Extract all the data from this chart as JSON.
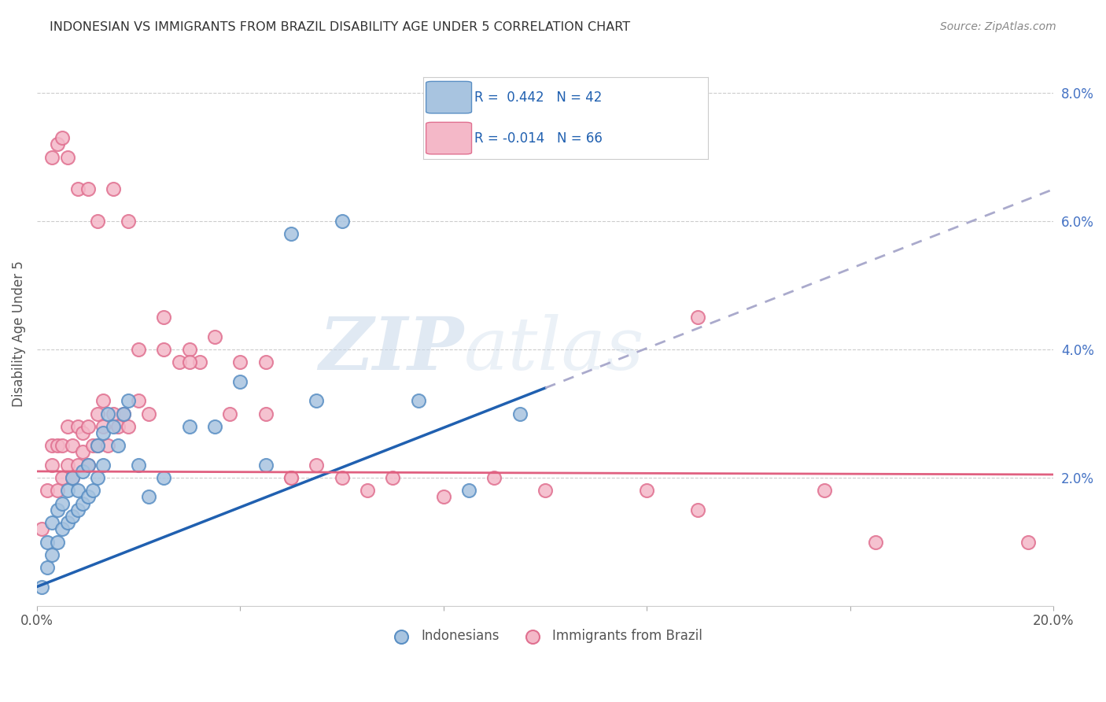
{
  "title": "INDONESIAN VS IMMIGRANTS FROM BRAZIL DISABILITY AGE UNDER 5 CORRELATION CHART",
  "source": "Source: ZipAtlas.com",
  "ylabel": "Disability Age Under 5",
  "xlim": [
    0,
    0.2
  ],
  "ylim": [
    0,
    0.085
  ],
  "color_indonesian_fill": "#a8c4e0",
  "color_indonesian_edge": "#5a8fc4",
  "color_brazil_fill": "#f4b8c8",
  "color_brazil_edge": "#e07090",
  "color_line_indonesian": "#2060b0",
  "color_line_brazil": "#e06080",
  "color_line_ext": "#aaaacc",
  "legend_R1": "0.442",
  "legend_N1": "42",
  "legend_R2": "-0.014",
  "legend_N2": "66",
  "watermark_zip": "ZIP",
  "watermark_atlas": "atlas",
  "ind_x": [
    0.001,
    0.002,
    0.002,
    0.003,
    0.003,
    0.004,
    0.004,
    0.005,
    0.005,
    0.006,
    0.006,
    0.007,
    0.007,
    0.008,
    0.008,
    0.009,
    0.009,
    0.01,
    0.01,
    0.011,
    0.012,
    0.012,
    0.013,
    0.013,
    0.014,
    0.015,
    0.016,
    0.017,
    0.018,
    0.02,
    0.022,
    0.025,
    0.03,
    0.035,
    0.04,
    0.045,
    0.05,
    0.055,
    0.06,
    0.075,
    0.085,
    0.095
  ],
  "ind_y": [
    0.003,
    0.006,
    0.01,
    0.008,
    0.013,
    0.01,
    0.015,
    0.012,
    0.016,
    0.013,
    0.018,
    0.014,
    0.02,
    0.015,
    0.018,
    0.016,
    0.021,
    0.017,
    0.022,
    0.018,
    0.025,
    0.02,
    0.027,
    0.022,
    0.03,
    0.028,
    0.025,
    0.03,
    0.032,
    0.022,
    0.017,
    0.02,
    0.028,
    0.028,
    0.035,
    0.022,
    0.058,
    0.032,
    0.06,
    0.032,
    0.018,
    0.03
  ],
  "bra_x": [
    0.001,
    0.002,
    0.003,
    0.003,
    0.004,
    0.004,
    0.005,
    0.005,
    0.006,
    0.006,
    0.007,
    0.007,
    0.008,
    0.008,
    0.009,
    0.009,
    0.01,
    0.01,
    0.011,
    0.012,
    0.012,
    0.013,
    0.013,
    0.014,
    0.015,
    0.016,
    0.017,
    0.018,
    0.02,
    0.022,
    0.025,
    0.028,
    0.03,
    0.032,
    0.035,
    0.038,
    0.04,
    0.045,
    0.05,
    0.055,
    0.06,
    0.065,
    0.07,
    0.08,
    0.09,
    0.1,
    0.12,
    0.13,
    0.155,
    0.165,
    0.003,
    0.004,
    0.005,
    0.006,
    0.008,
    0.01,
    0.012,
    0.015,
    0.018,
    0.02,
    0.025,
    0.03,
    0.045,
    0.05,
    0.13,
    0.195
  ],
  "bra_y": [
    0.012,
    0.018,
    0.022,
    0.025,
    0.018,
    0.025,
    0.02,
    0.025,
    0.022,
    0.028,
    0.02,
    0.025,
    0.022,
    0.028,
    0.024,
    0.027,
    0.022,
    0.028,
    0.025,
    0.03,
    0.025,
    0.028,
    0.032,
    0.025,
    0.03,
    0.028,
    0.03,
    0.028,
    0.032,
    0.03,
    0.04,
    0.038,
    0.04,
    0.038,
    0.042,
    0.03,
    0.038,
    0.03,
    0.02,
    0.022,
    0.02,
    0.018,
    0.02,
    0.017,
    0.02,
    0.018,
    0.018,
    0.015,
    0.018,
    0.01,
    0.07,
    0.072,
    0.073,
    0.07,
    0.065,
    0.065,
    0.06,
    0.065,
    0.06,
    0.04,
    0.045,
    0.038,
    0.038,
    0.02,
    0.045,
    0.01
  ],
  "ind_line_x0": 0.0,
  "ind_line_y0": 0.003,
  "ind_line_x1": 0.1,
  "ind_line_y1": 0.034,
  "ind_line_solid_end": 0.1,
  "ind_line_dash_end": 0.2,
  "ind_line_dash_y_end": 0.065,
  "bra_line_x0": 0.0,
  "bra_line_y0": 0.021,
  "bra_line_x1": 0.2,
  "bra_line_y1": 0.0205
}
